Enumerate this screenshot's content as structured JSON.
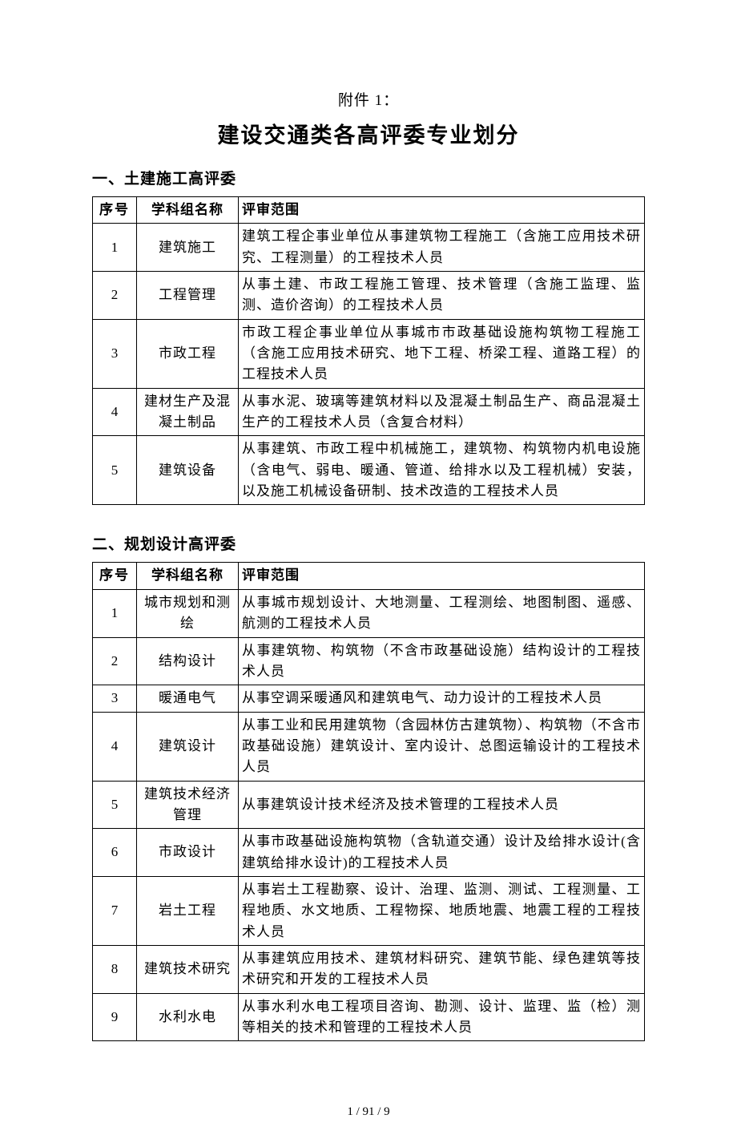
{
  "attachment_label": "附件 1：",
  "main_title": "建设交通类各高评委专业划分",
  "footer": "1 / 91 / 9",
  "table_headers": {
    "num": "序号",
    "name": "学科组名称",
    "scope": "评审范围"
  },
  "sections": [
    {
      "title": "一、土建施工高评委",
      "rows": [
        {
          "num": "1",
          "name": "建筑施工",
          "scope": "建筑工程企事业单位从事建筑物工程施工（含施工应用技术研究、工程测量）的工程技术人员"
        },
        {
          "num": "2",
          "name": "工程管理",
          "scope": "从事土建、市政工程施工管理、技术管理（含施工监理、监测、造价咨询）的工程技术人员"
        },
        {
          "num": "3",
          "name": "市政工程",
          "scope": "市政工程企事业单位从事城市市政基础设施构筑物工程施工（含施工应用技术研究、地下工程、桥梁工程、道路工程）的工程技术人员"
        },
        {
          "num": "4",
          "name": "建材生产及混凝土制品",
          "scope": "从事水泥、玻璃等建筑材料以及混凝土制品生产、商品混凝土生产的工程技术人员（含复合材料）"
        },
        {
          "num": "5",
          "name": "建筑设备",
          "scope": "从事建筑、市政工程中机械施工，建筑物、构筑物内机电设施（含电气、弱电、暖通、管道、给排水以及工程机械）安装，以及施工机械设备研制、技术改造的工程技术人员"
        }
      ]
    },
    {
      "title": "二、规划设计高评委",
      "rows": [
        {
          "num": "1",
          "name": "城市规划和测绘",
          "scope": "从事城市规划设计、大地测量、工程测绘、地图制图、遥感、航测的工程技术人员"
        },
        {
          "num": "2",
          "name": "结构设计",
          "scope": "从事建筑物、构筑物（不含市政基础设施）结构设计的工程技术人员"
        },
        {
          "num": "3",
          "name": "暖通电气",
          "scope": "从事空调采暖通风和建筑电气、动力设计的工程技术人员"
        },
        {
          "num": "4",
          "name": "建筑设计",
          "scope": "从事工业和民用建筑物（含园林仿古建筑物）、构筑物（不含市政基础设施）建筑设计、室内设计、总图运输设计的工程技术人员"
        },
        {
          "num": "5",
          "name": "建筑技术经济管理",
          "scope": "从事建筑设计技术经济及技术管理的工程技术人员"
        },
        {
          "num": "6",
          "name": "市政设计",
          "scope": "从事市政基础设施构筑物（含轨道交通）设计及给排水设计(含建筑给排水设计)的工程技术人员"
        },
        {
          "num": "7",
          "name": "岩土工程",
          "scope": "从事岩土工程勘察、设计、治理、监测、测试、工程测量、工程地质、水文地质、工程物探、地质地震、地震工程的工程技术人员"
        },
        {
          "num": "8",
          "name": "建筑技术研究",
          "scope": "从事建筑应用技术、建筑材料研究、建筑节能、绿色建筑等技术研究和开发的工程技术人员"
        },
        {
          "num": "9",
          "name": "水利水电",
          "scope": "从事水利水电工程项目咨询、勘测、设计、监理、监（检）测等相关的技术和管理的工程技术人员"
        }
      ]
    }
  ]
}
